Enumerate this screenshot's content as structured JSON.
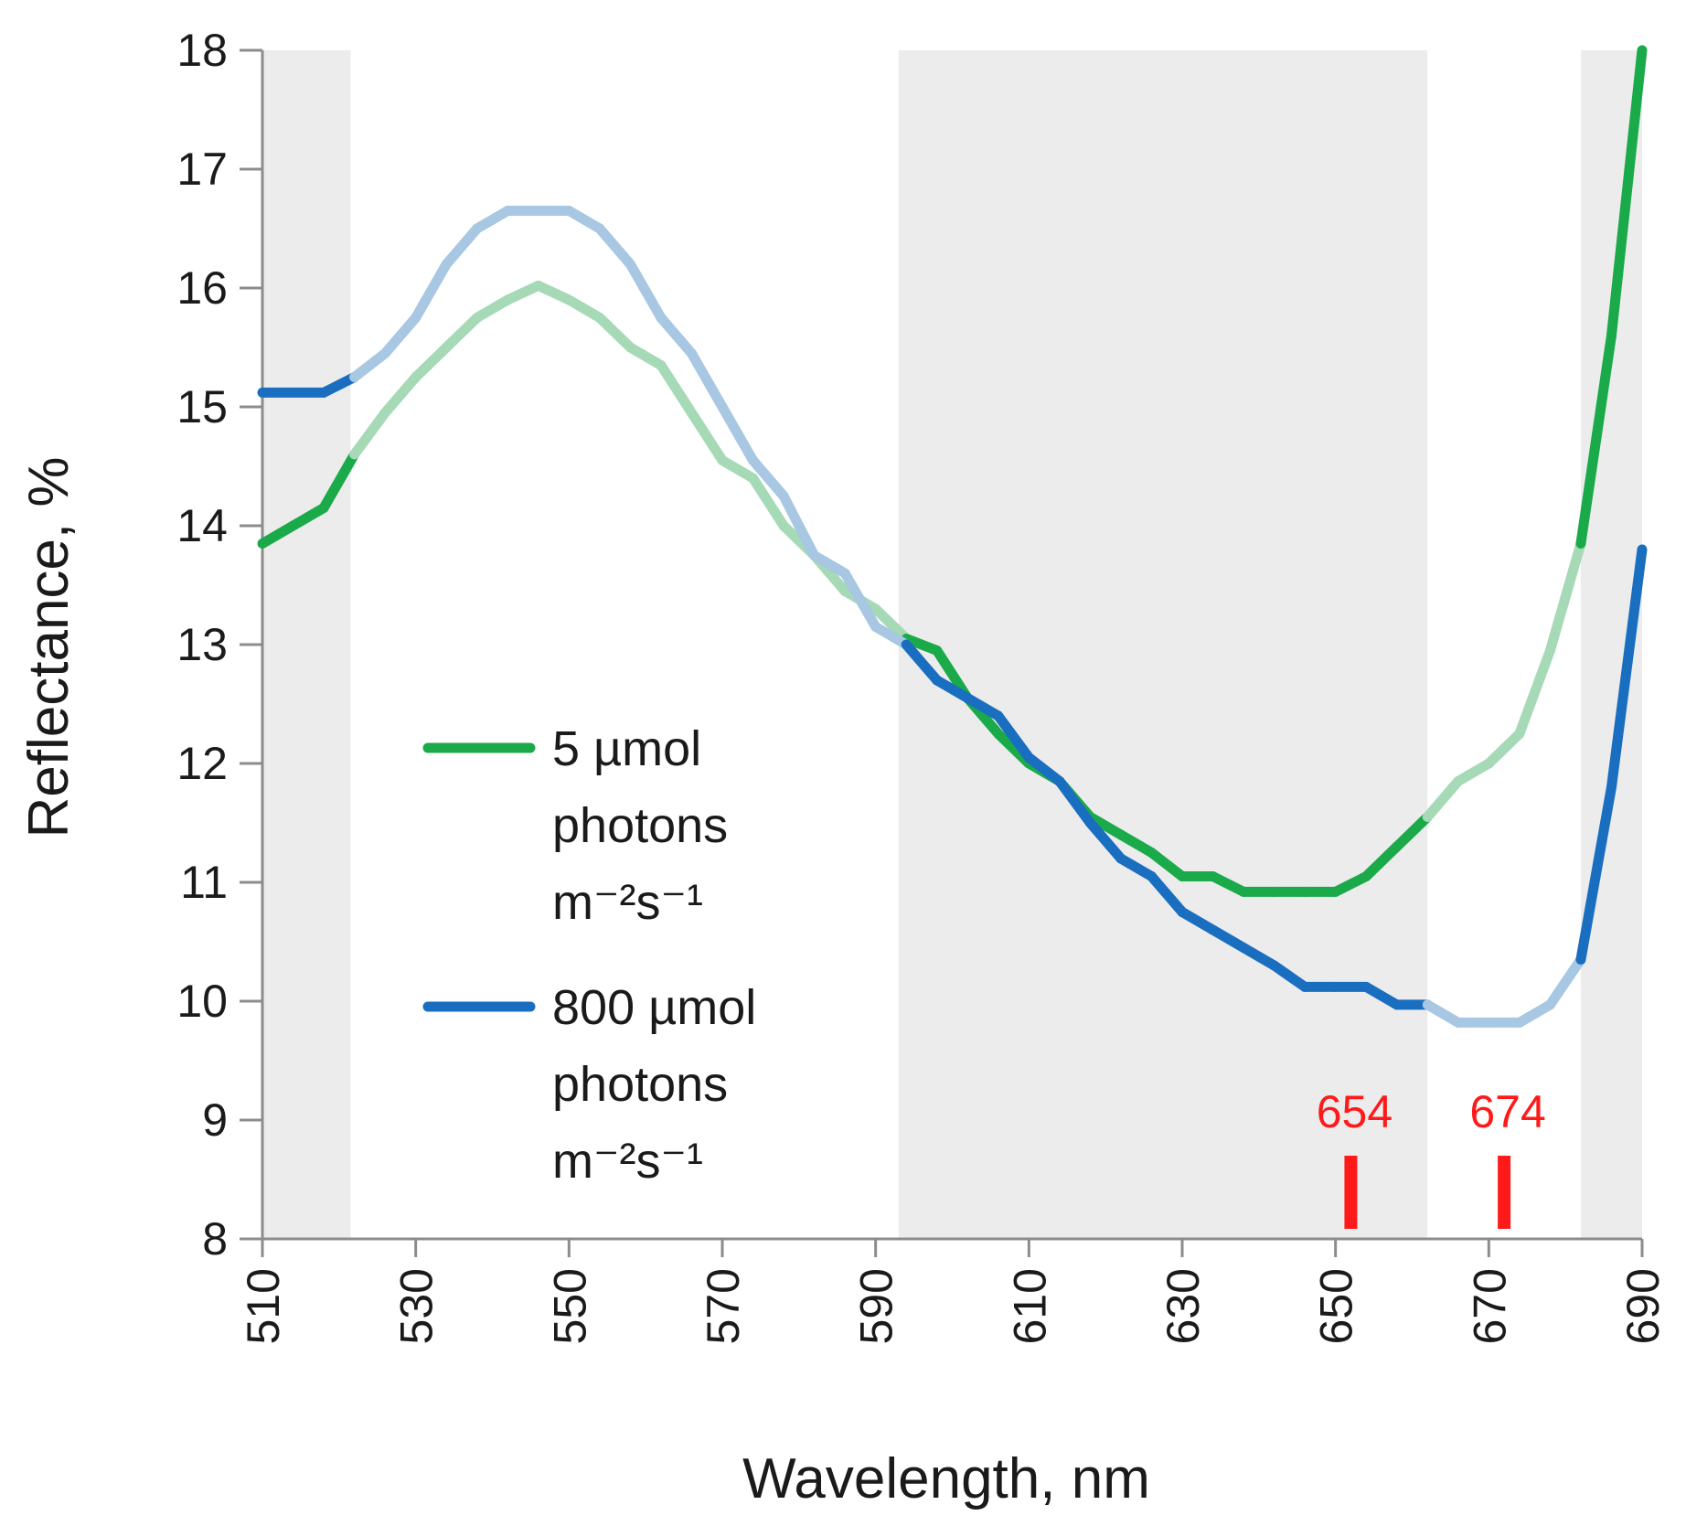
{
  "chart_data": {
    "type": "line",
    "title": "",
    "xlabel": "Wavelength, nm",
    "ylabel": "Reflectance, %",
    "xlim": [
      510,
      690
    ],
    "ylim": [
      8,
      18
    ],
    "x_ticks": [
      "510",
      "530",
      "550",
      "570",
      "590",
      "610",
      "630",
      "650",
      "670",
      "690"
    ],
    "y_ticks": [
      "8",
      "9",
      "10",
      "11",
      "12",
      "13",
      "14",
      "15",
      "16",
      "17",
      "18"
    ],
    "grid": false,
    "legend_position": "center-left",
    "shaded_ranges": [
      [
        510,
        521.5
      ],
      [
        593,
        662
      ],
      [
        682,
        690
      ]
    ],
    "series": [
      {
        "name": "5 µmol photons m⁻²s⁻¹",
        "legend_lines": [
          "5 µmol",
          "photons",
          "m⁻²s⁻¹"
        ],
        "color": "#1aaa4a",
        "color_faded": "#a6d9b6",
        "x": [
          510,
          518,
          522,
          526,
          530,
          534,
          538,
          542,
          546,
          550,
          554,
          558,
          562,
          566,
          570,
          574,
          578,
          582,
          586,
          590,
          594,
          598,
          602,
          606,
          610,
          614,
          618,
          622,
          626,
          630,
          634,
          638,
          642,
          646,
          650,
          654,
          658,
          662,
          666,
          670,
          674,
          678,
          682,
          686,
          690
        ],
        "values": [
          13.85,
          14.15,
          14.6,
          14.95,
          15.25,
          15.5,
          15.75,
          15.9,
          16.02,
          15.9,
          15.75,
          15.5,
          15.35,
          14.95,
          14.55,
          14.4,
          14.0,
          13.75,
          13.45,
          13.3,
          13.05,
          12.95,
          12.55,
          12.25,
          12.0,
          11.85,
          11.55,
          11.4,
          11.25,
          11.05,
          11.05,
          10.92,
          10.92,
          10.92,
          10.92,
          11.05,
          11.3,
          11.55,
          11.85,
          12.0,
          12.25,
          12.95,
          13.85,
          15.6,
          18.0
        ]
      },
      {
        "name": "800 µmol photons m⁻²s⁻¹",
        "legend_lines": [
          "800 µmol",
          "photons",
          "m⁻²s⁻¹"
        ],
        "color": "#1a6ec0",
        "color_faded": "#a7c7e3",
        "x": [
          510,
          518,
          522,
          526,
          530,
          534,
          538,
          542,
          546,
          550,
          554,
          558,
          562,
          566,
          570,
          574,
          578,
          582,
          586,
          590,
          594,
          598,
          602,
          606,
          610,
          614,
          618,
          622,
          626,
          630,
          634,
          638,
          642,
          646,
          650,
          654,
          658,
          662,
          666,
          670,
          674,
          678,
          682,
          686,
          690
        ],
        "values": [
          15.12,
          15.12,
          15.25,
          15.45,
          15.75,
          16.2,
          16.5,
          16.65,
          16.65,
          16.65,
          16.5,
          16.2,
          15.75,
          15.45,
          15.0,
          14.55,
          14.25,
          13.75,
          13.6,
          13.15,
          13.0,
          12.7,
          12.55,
          12.4,
          12.05,
          11.85,
          11.5,
          11.2,
          11.05,
          10.75,
          10.6,
          10.45,
          10.3,
          10.12,
          10.12,
          10.12,
          9.97,
          9.97,
          9.82,
          9.82,
          9.82,
          9.97,
          10.35,
          11.8,
          13.8
        ]
      }
    ],
    "markers": [
      {
        "label": "654",
        "x": 652
      },
      {
        "label": "674",
        "x": 672
      }
    ]
  }
}
